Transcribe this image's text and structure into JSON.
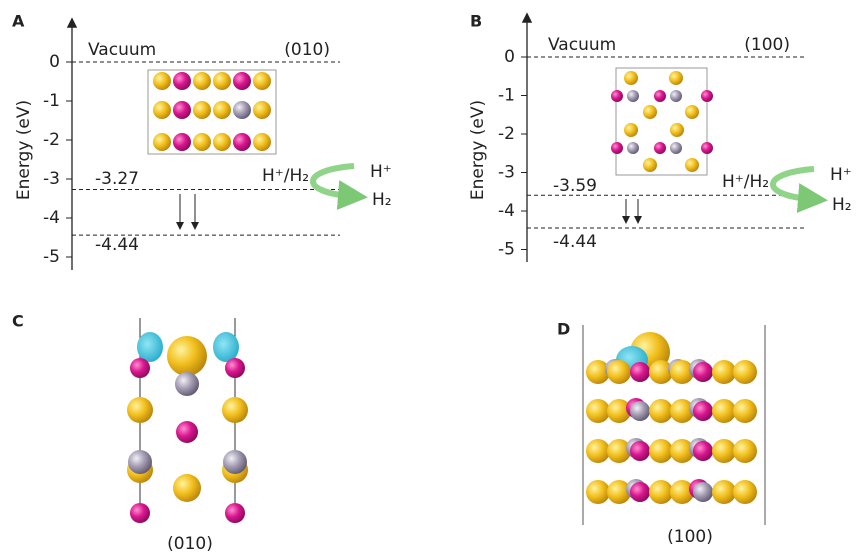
{
  "panels": [
    {
      "label": "A",
      "y_axis_label": "Energy (eV)",
      "vacuum_label": "Vacuum",
      "facet": "(010)",
      "yticks": [
        0,
        -1,
        -2,
        -3,
        -4,
        -5
      ],
      "levels": [
        -3.27,
        -4.44
      ],
      "couple": "H⁺/H₂",
      "reactant": "H⁺",
      "product": "H₂"
    },
    {
      "label": "B",
      "y_axis_label": "Energy (eV)",
      "vacuum_label": "Vacuum",
      "facet": "(100)",
      "yticks": [
        0,
        -1,
        -2,
        -3,
        -4,
        -5
      ],
      "levels": [
        -3.59,
        -4.44
      ],
      "couple": "H⁺/H₂",
      "reactant": "H⁺",
      "product": "H₂"
    },
    {
      "label": "C",
      "caption": "(010)"
    },
    {
      "label": "D",
      "caption": "(100)"
    }
  ]
}
